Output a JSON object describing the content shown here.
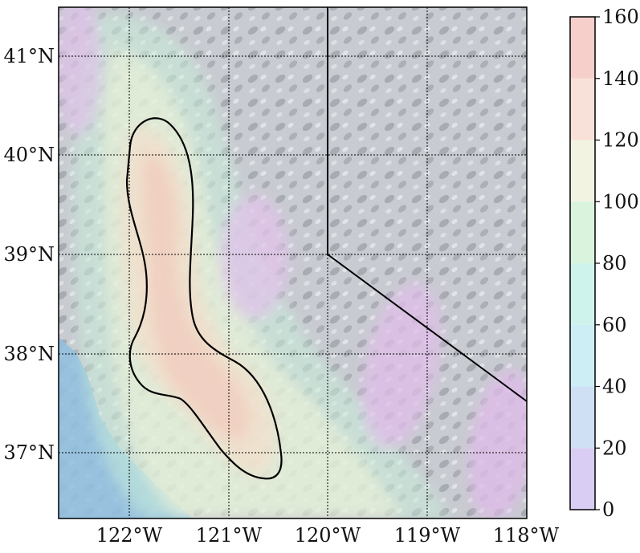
{
  "map": {
    "lon_ticks": [
      {
        "value": -122,
        "label": "122°W"
      },
      {
        "value": -121,
        "label": "121°W"
      },
      {
        "value": -120,
        "label": "120°W"
      },
      {
        "value": -119,
        "label": "119°W"
      },
      {
        "value": -118,
        "label": "118°W"
      }
    ],
    "lat_ticks": [
      {
        "value": 41,
        "label": "41°N"
      },
      {
        "value": 40,
        "label": "40°N"
      },
      {
        "value": 39,
        "label": "39°N"
      },
      {
        "value": 38,
        "label": "38°N"
      },
      {
        "value": 37,
        "label": "37°N"
      }
    ],
    "lon_range": [
      -122.72,
      -118.0
    ],
    "lat_range": [
      36.35,
      41.5
    ],
    "grid": true,
    "basemap": "shaded relief, California–Nevada",
    "state_border": "California–Nevada border",
    "contour_line": "black closed contour around Sacramento / San Joaquin valley high values",
    "colors": {
      "ocean": "#8fbfe0",
      "relief_light": "#c9ccd2",
      "contour": "#000000"
    }
  },
  "colorbar": {
    "min": 0,
    "max": 160,
    "ticks": [
      {
        "value": 0,
        "label": "0"
      },
      {
        "value": 20,
        "label": "20"
      },
      {
        "value": 40,
        "label": "40"
      },
      {
        "value": 60,
        "label": "60"
      },
      {
        "value": 80,
        "label": "80"
      },
      {
        "value": 100,
        "label": "100"
      },
      {
        "value": 120,
        "label": "120"
      },
      {
        "value": 140,
        "label": "140"
      },
      {
        "value": 160,
        "label": "160"
      }
    ],
    "bands": [
      {
        "from": 0,
        "to": 20,
        "color": "#d9cdf3"
      },
      {
        "from": 20,
        "to": 40,
        "color": "#cfe0f5"
      },
      {
        "from": 40,
        "to": 60,
        "color": "#cdeef5"
      },
      {
        "from": 60,
        "to": 80,
        "color": "#cdf3ec"
      },
      {
        "from": 80,
        "to": 100,
        "color": "#d9f3dc"
      },
      {
        "from": 100,
        "to": 120,
        "color": "#f3f3e1"
      },
      {
        "from": 120,
        "to": 140,
        "color": "#f8e1d8"
      },
      {
        "from": 140,
        "to": 160,
        "color": "#f6cfcb"
      }
    ]
  }
}
